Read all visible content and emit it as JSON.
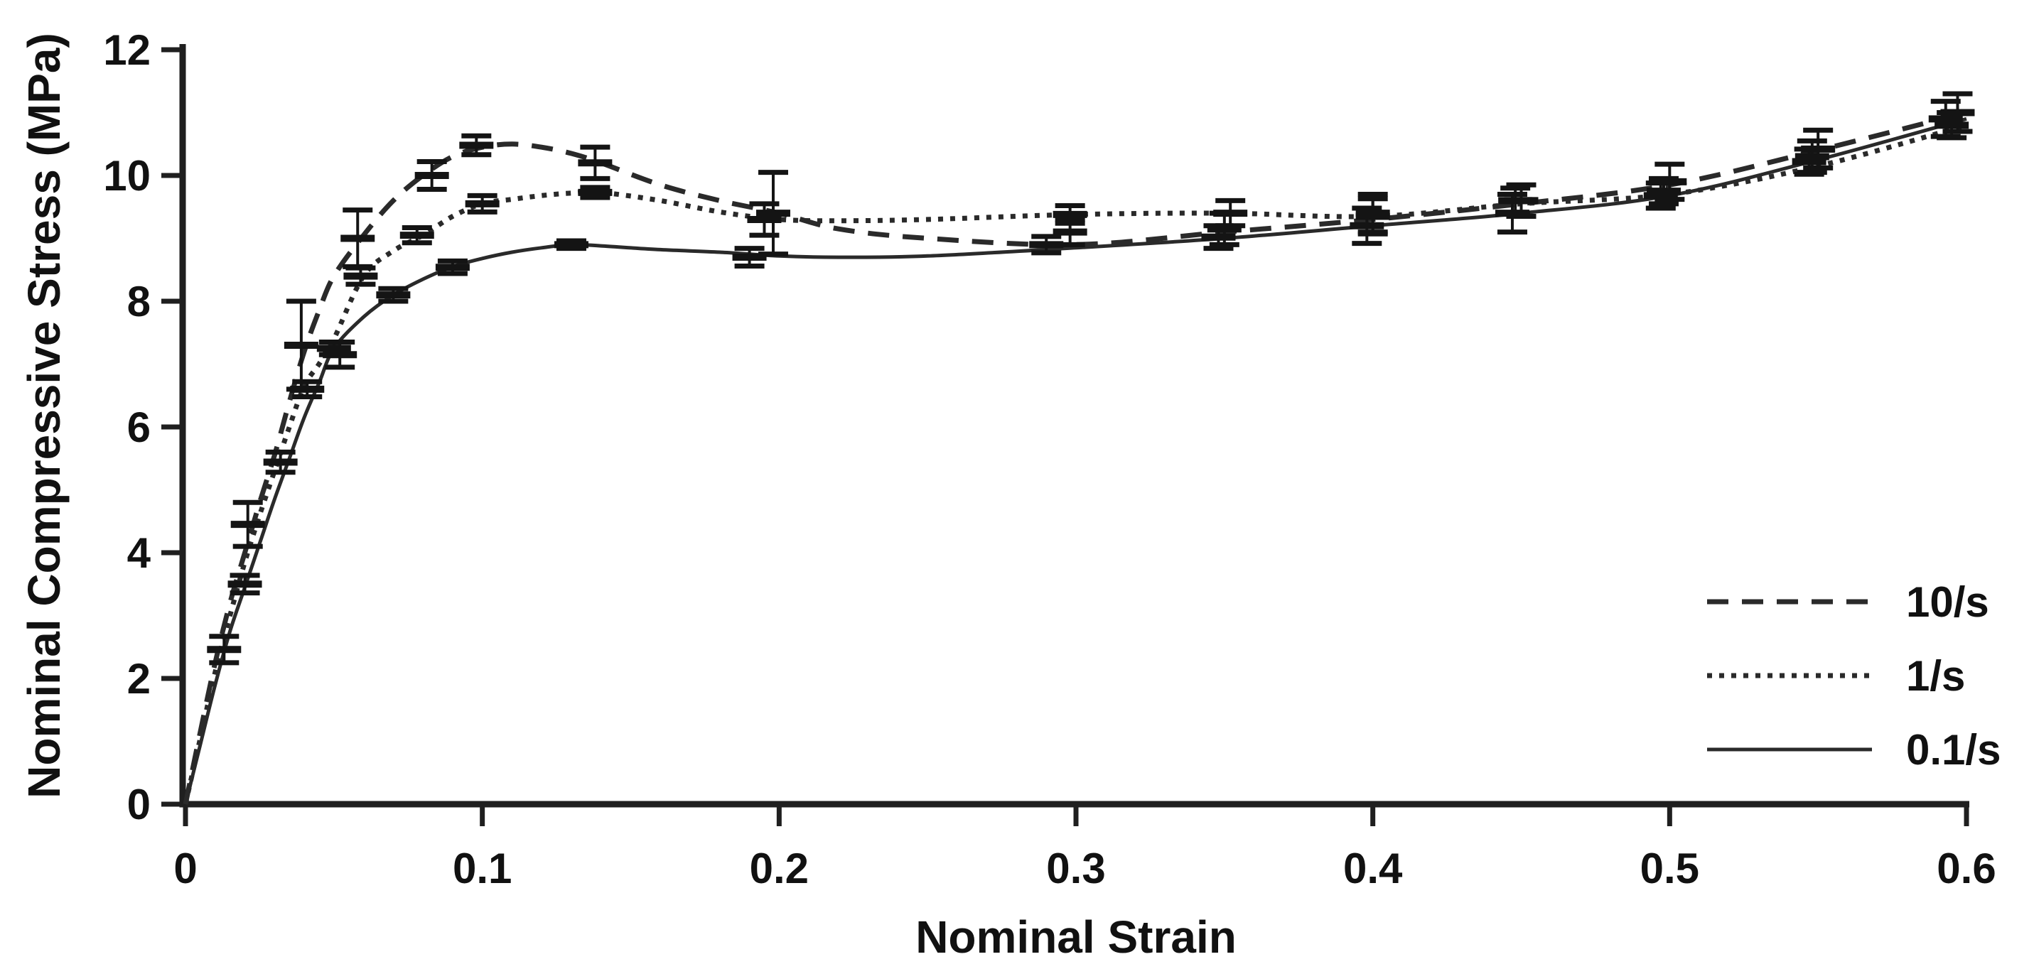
{
  "figure": {
    "background": "#ffffff",
    "axis_color": "#1f1f1f",
    "text_color": "#111111",
    "series_color": "#2a2a2a",
    "error_bar_color": "#141414"
  },
  "chart_data": {
    "type": "line",
    "title": "",
    "xlabel": "Nominal Strain",
    "ylabel": "Nominal Compressive Stress (MPa)",
    "xlim": [
      0,
      0.6
    ],
    "ylim": [
      0,
      12
    ],
    "xticks": [
      "0",
      "0.1",
      "0.2",
      "0.3",
      "0.4",
      "0.5",
      "0.6"
    ],
    "yticks": [
      "0",
      "2",
      "4",
      "6",
      "8",
      "10",
      "12"
    ],
    "grid": false,
    "legend_position": "lower right",
    "x": [
      0,
      0.005,
      0.01,
      0.015,
      0.02,
      0.025,
      0.03,
      0.035,
      0.04,
      0.045,
      0.05,
      0.06,
      0.07,
      0.08,
      0.09,
      0.1,
      0.11,
      0.12,
      0.13,
      0.14,
      0.16,
      0.18,
      0.2,
      0.22,
      0.25,
      0.3,
      0.35,
      0.4,
      0.45,
      0.5,
      0.55,
      0.6
    ],
    "series": [
      {
        "name": "10/s",
        "style": "dashed",
        "values": [
          0,
          1.15,
          2.25,
          3.2,
          4.0,
          4.8,
          5.55,
          6.4,
          7.2,
          7.85,
          8.4,
          9.05,
          9.6,
          10.0,
          10.3,
          10.45,
          10.5,
          10.45,
          10.35,
          10.2,
          9.85,
          9.6,
          9.4,
          9.15,
          9.0,
          8.9,
          9.1,
          9.3,
          9.55,
          9.85,
          10.4,
          11.0
        ],
        "error_bars": [
          [
            0.021,
            4.45,
            0.35
          ],
          [
            0.039,
            7.3,
            0.7
          ],
          [
            0.058,
            9.0,
            0.45
          ],
          [
            0.083,
            10.0,
            0.22
          ],
          [
            0.098,
            10.48,
            0.15
          ],
          [
            0.138,
            10.2,
            0.25
          ],
          [
            0.198,
            9.4,
            0.65
          ],
          [
            0.298,
            9.1,
            0.2
          ],
          [
            0.35,
            9.15,
            0.25
          ],
          [
            0.4,
            9.4,
            0.3
          ],
          [
            0.45,
            9.6,
            0.25
          ],
          [
            0.5,
            9.9,
            0.28
          ],
          [
            0.55,
            10.42,
            0.3
          ],
          [
            0.597,
            11.0,
            0.3
          ]
        ]
      },
      {
        "name": "1/s",
        "style": "dotted",
        "values": [
          0,
          1.05,
          2.1,
          3.0,
          3.85,
          4.6,
          5.3,
          6.0,
          6.65,
          7.0,
          7.4,
          8.4,
          8.8,
          9.05,
          9.35,
          9.55,
          9.62,
          9.68,
          9.72,
          9.73,
          9.6,
          9.42,
          9.3,
          9.28,
          9.3,
          9.38,
          9.4,
          9.35,
          9.55,
          9.7,
          10.15,
          10.8
        ],
        "error_bars": [
          [
            0.032,
            5.44,
            0.16
          ],
          [
            0.041,
            6.6,
            0.12
          ],
          [
            0.052,
            7.15,
            0.2
          ],
          [
            0.059,
            8.4,
            0.13
          ],
          [
            0.078,
            9.05,
            0.12
          ],
          [
            0.1,
            9.55,
            0.13
          ],
          [
            0.138,
            9.73,
            0.08
          ],
          [
            0.195,
            9.3,
            0.25
          ],
          [
            0.298,
            9.38,
            0.14
          ],
          [
            0.352,
            9.4,
            0.2
          ],
          [
            0.4,
            9.35,
            0.28
          ],
          [
            0.448,
            9.6,
            0.2
          ],
          [
            0.498,
            9.75,
            0.2
          ],
          [
            0.548,
            10.3,
            0.25
          ],
          [
            0.595,
            10.8,
            0.2
          ]
        ]
      },
      {
        "name": "0.1/s",
        "style": "solid",
        "values": [
          0,
          0.95,
          1.9,
          2.75,
          3.45,
          4.15,
          4.85,
          5.5,
          6.15,
          6.7,
          7.25,
          7.75,
          8.1,
          8.35,
          8.55,
          8.68,
          8.78,
          8.85,
          8.9,
          8.88,
          8.82,
          8.78,
          8.72,
          8.7,
          8.72,
          8.85,
          9.0,
          9.2,
          9.4,
          9.68,
          10.25,
          10.9
        ],
        "error_bars": [
          [
            0.013,
            2.46,
            0.21
          ],
          [
            0.02,
            3.5,
            0.14
          ],
          [
            0.05,
            7.25,
            0.1
          ],
          [
            0.07,
            8.1,
            0.1
          ],
          [
            0.09,
            8.54,
            0.1
          ],
          [
            0.13,
            8.9,
            0.06
          ],
          [
            0.19,
            8.7,
            0.14
          ],
          [
            0.29,
            8.9,
            0.13
          ],
          [
            0.348,
            9.02,
            0.18
          ],
          [
            0.398,
            9.2,
            0.28
          ],
          [
            0.447,
            9.4,
            0.3
          ],
          [
            0.497,
            9.68,
            0.2
          ],
          [
            0.547,
            10.22,
            0.2
          ],
          [
            0.593,
            10.9,
            0.28
          ]
        ]
      }
    ]
  }
}
